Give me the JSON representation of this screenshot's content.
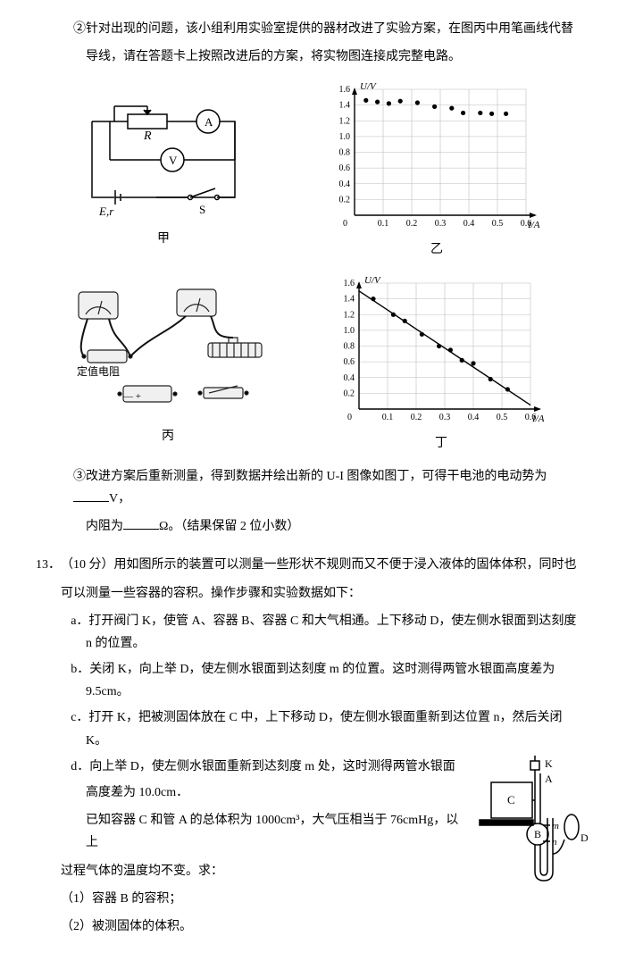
{
  "q12": {
    "part2_line1": "②针对出现的问题，该小组利用实验室提供的器材改进了实验方案，在图丙中用笔画线代替",
    "part2_line2": "导线，请在答题卡上按照改进后的方案，将实物图连接成完整电路。",
    "fig_jia_label": "甲",
    "fig_yi_label": "乙",
    "fig_bing_label": "丙",
    "fig_ding_label": "丁",
    "circuit": {
      "R": "R",
      "A": "A",
      "V": "V",
      "E": "E,r",
      "S": "S"
    },
    "chart_yi": {
      "ylabel": "U/V",
      "xlabel": "I/A",
      "ymax": 1.6,
      "ystep": 0.2,
      "xmax": 0.6,
      "xstep": 0.1,
      "yticks": [
        "0.2",
        "0.4",
        "0.6",
        "0.8",
        "1.0",
        "1.2",
        "1.4",
        "1.6"
      ],
      "xticks": [
        "0.1",
        "0.2",
        "0.3",
        "0.4",
        "0.5",
        "0.6"
      ],
      "points": [
        [
          0.04,
          1.46
        ],
        [
          0.08,
          1.44
        ],
        [
          0.12,
          1.42
        ],
        [
          0.16,
          1.45
        ],
        [
          0.22,
          1.43
        ],
        [
          0.28,
          1.38
        ],
        [
          0.34,
          1.36
        ],
        [
          0.38,
          1.3
        ],
        [
          0.44,
          1.3
        ],
        [
          0.48,
          1.29
        ],
        [
          0.53,
          1.29
        ]
      ],
      "grid_color": "#bdbdbd",
      "axis_color": "#000000",
      "point_color": "#000000",
      "bg": "#ffffff",
      "fontsize": 10
    },
    "chart_ding": {
      "ylabel": "U/V",
      "xlabel": "I/A",
      "ymax": 1.6,
      "ystep": 0.2,
      "xmax": 0.6,
      "xstep": 0.1,
      "yticks": [
        "0.2",
        "0.4",
        "0.6",
        "0.8",
        "1.0",
        "1.2",
        "1.4",
        "1.6"
      ],
      "xticks": [
        "0.1",
        "0.2",
        "0.3",
        "0.4",
        "0.5",
        "0.6"
      ],
      "points": [
        [
          0.05,
          1.4
        ],
        [
          0.12,
          1.2
        ],
        [
          0.16,
          1.12
        ],
        [
          0.22,
          0.95
        ],
        [
          0.28,
          0.8
        ],
        [
          0.32,
          0.75
        ],
        [
          0.36,
          0.62
        ],
        [
          0.4,
          0.58
        ],
        [
          0.46,
          0.38
        ],
        [
          0.52,
          0.25
        ]
      ],
      "fit_line": {
        "x1": 0,
        "y1": 1.5,
        "x2": 0.6,
        "y2": 0.05
      },
      "grid_color": "#bdbdbd",
      "axis_color": "#000000",
      "point_color": "#000000",
      "line_color": "#000000",
      "bg": "#ffffff",
      "fontsize": 10
    },
    "bing_label": "定值电阻",
    "part3_line1": "③改进方案后重新测量，得到数据并绘出新的 U-I 图像如图丁，可得干电池的电动势为",
    "part3_unit1": "V，",
    "part3_line2": "内阻为",
    "part3_unit2": "Ω。（结果保留 2 位小数）"
  },
  "q13": {
    "num": "13．",
    "points": "（10 分）",
    "intro1": "用如图所示的装置可以测量一些形状不规则而又不便于浸入液体的固体体积，同时也",
    "intro2": "可以测量一些容器的容积。操作步骤和实验数据如下：",
    "a": "a．打开阀门 K，使管 A、容器 B、容器 C 和大气相通。上下移动 D，使左侧水银面到达刻度 n 的位置。",
    "b": "b．关闭 K，向上举 D，使左侧水银面到达刻度 m 的位置。这时测得两管水银面高度差为 9.5cm。",
    "c": "c．打开 K，把被测固体放在 C 中，上下移动 D，使左侧水银面重新到达位置 n，然后关闭 K。",
    "d1": "d．向上举 D，使左侧水银面重新到达刻度 m 处，这时测得两管水银面",
    "d2": "高度差为 10.0cm．",
    "given": "已知容器 C 和管 A 的总体积为 1000cm³，大气压相当于 76cmHg，以上",
    "given2": "过程气体的温度均不变。求：",
    "sub1": "（1）容器 B 的容积；",
    "sub2": "（2）被测固体的体积。",
    "apparatus": {
      "K": "K",
      "A": "A",
      "B": "B",
      "C": "C",
      "D": "D",
      "m": "m",
      "n": "n"
    }
  }
}
